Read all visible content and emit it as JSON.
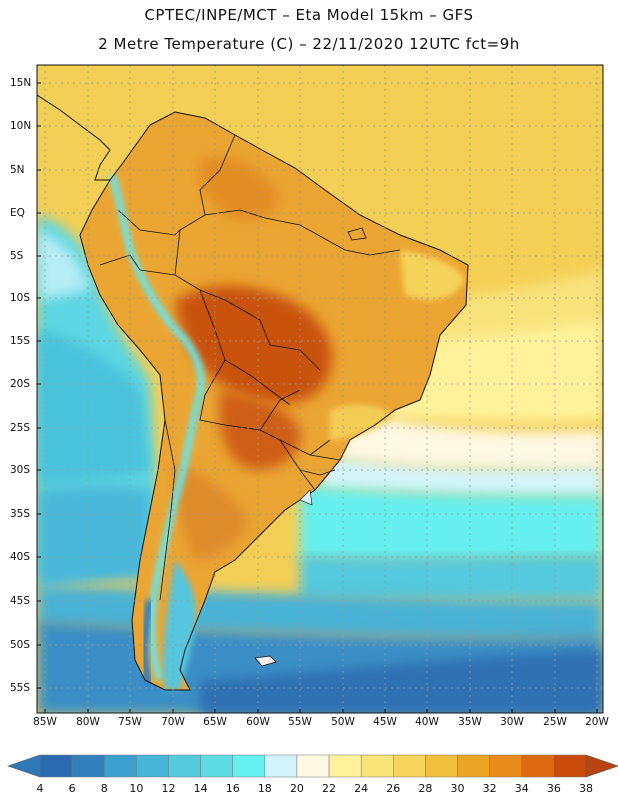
{
  "header": {
    "line1": "CPTEC/INPE/MCT –  Eta Model 15km – GFS",
    "line2": "2 Metre Temperature (C) – 22/11/2020 12UTC fct=9h"
  },
  "lat_labels": [
    "15N",
    "10N",
    "5N",
    "EQ",
    "5S",
    "10S",
    "15S",
    "20S",
    "25S",
    "30S",
    "35S",
    "40S",
    "45S",
    "50S",
    "55S"
  ],
  "lon_labels": [
    "85W",
    "80W",
    "75W",
    "70W",
    "65W",
    "60W",
    "55W",
    "50W",
    "45W",
    "40W",
    "35W",
    "30W",
    "25W",
    "20W"
  ],
  "colorbar": {
    "labels": [
      "4",
      "6",
      "8",
      "10",
      "12",
      "14",
      "16",
      "18",
      "20",
      "22",
      "24",
      "26",
      "28",
      "30",
      "32",
      "34",
      "36",
      "38"
    ],
    "colors": [
      "#2b6cb0",
      "#3380bd",
      "#3d9fcc",
      "#48b6d8",
      "#55c9de",
      "#5fdbe4",
      "#66f0f0",
      "#d4f4fb",
      "#fff8e3",
      "#fff29a",
      "#f9e47a",
      "#f5d35c",
      "#f0bf3c",
      "#eaa522",
      "#e98a1c",
      "#dd6a10",
      "#c94a0a"
    ],
    "low_color": "#2f78b8",
    "high_color": "#b84510"
  },
  "palette": {
    "ocean_north": "#f5d35c",
    "land_hot": "#c9520c",
    "land_warm": "#e8a030",
    "coast_line": "#111111"
  }
}
